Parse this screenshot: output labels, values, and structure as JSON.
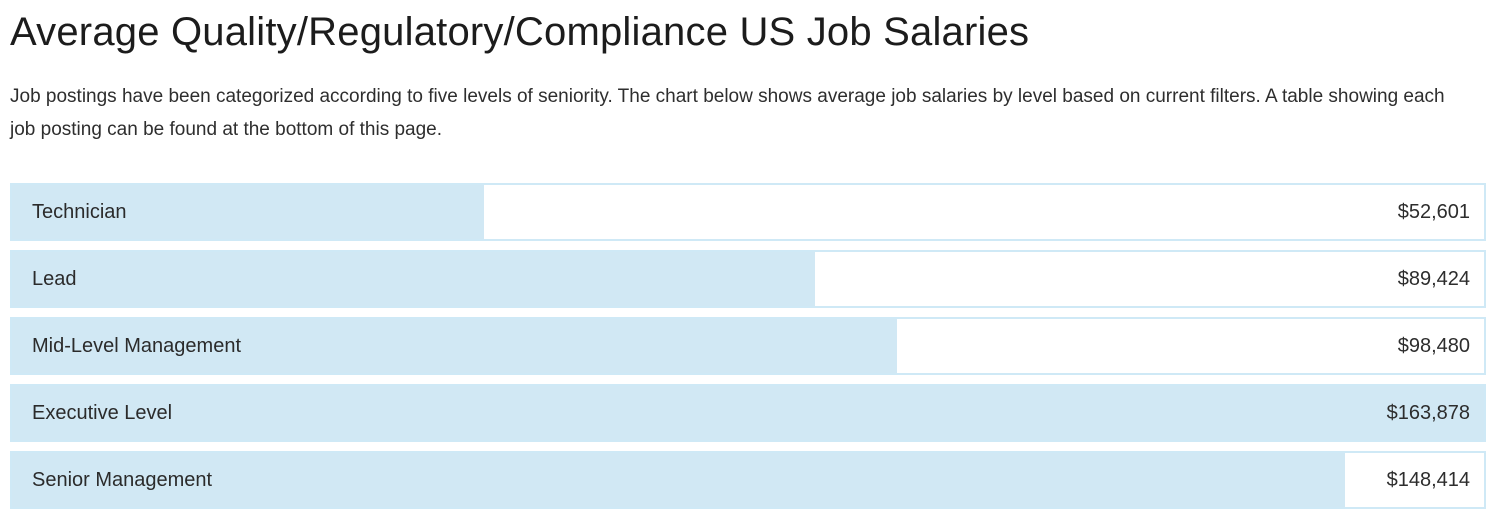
{
  "page": {
    "title": "Average Quality/Regulatory/Compliance US Job Salaries",
    "description": "Job postings have been categorized according to five levels of seniority. The chart below shows average job salaries by level based on current filters. A table showing each job posting can be found at the bottom of this page."
  },
  "colors": {
    "bar_fill": "#d1e8f4",
    "bar_border": "#cfe9f6",
    "title_text": "#1c1c1c",
    "body_text": "#2e2e2e"
  },
  "chart_data": {
    "type": "bar",
    "orientation": "horizontal",
    "title": "Average Quality/Regulatory/Compliance US Job Salaries",
    "xlabel": "",
    "ylabel": "",
    "grid": false,
    "legend": false,
    "axis_hidden": true,
    "max_value": 163878,
    "categories": [
      "Technician",
      "Lead",
      "Mid-Level Management",
      "Executive Level",
      "Senior Management"
    ],
    "values": [
      52601,
      89424,
      98480,
      163878,
      148414
    ],
    "value_labels": [
      "$52,601",
      "$89,424",
      "$98,480",
      "$163,878",
      "$148,414"
    ]
  }
}
